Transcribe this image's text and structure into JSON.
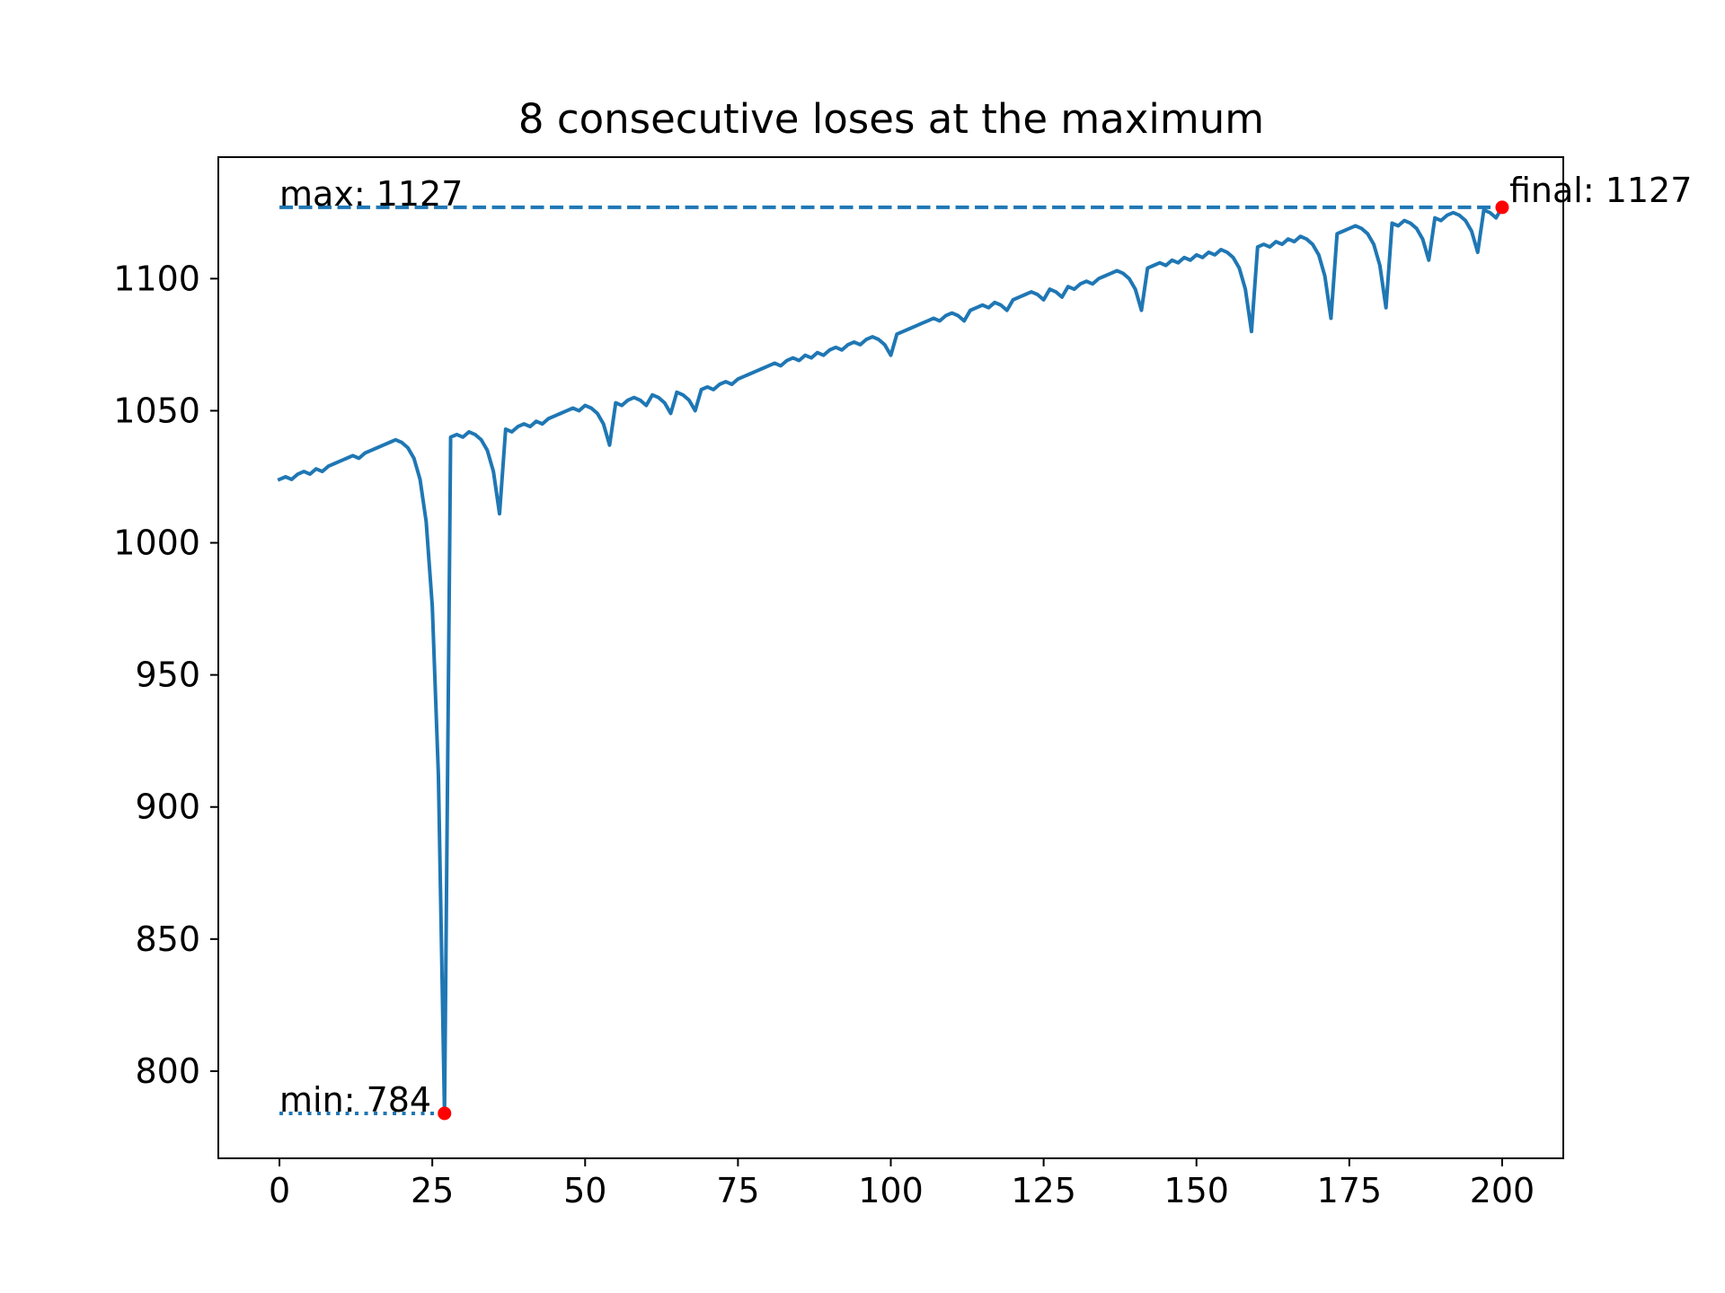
{
  "chart_data": {
    "type": "line",
    "title": "8 consecutive loses at the maximum",
    "xlabel": "",
    "ylabel": "",
    "xlim": [
      -10,
      210
    ],
    "ylim": [
      767,
      1146
    ],
    "grid": false,
    "legend": "none",
    "xticks": [
      0,
      25,
      50,
      75,
      100,
      125,
      150,
      175,
      200
    ],
    "yticks": [
      800,
      850,
      900,
      950,
      1000,
      1050,
      1100
    ],
    "series": [
      {
        "color": "#1f77b4",
        "x": [
          0,
          1,
          2,
          3,
          4,
          5,
          6,
          7,
          8,
          9,
          10,
          11,
          12,
          13,
          14,
          15,
          16,
          17,
          18,
          19,
          20,
          21,
          22,
          23,
          24,
          25,
          26,
          27,
          28,
          29,
          30,
          31,
          32,
          33,
          34,
          35,
          36,
          37,
          38,
          39,
          40,
          41,
          42,
          43,
          44,
          45,
          46,
          47,
          48,
          49,
          50,
          51,
          52,
          53,
          54,
          55,
          56,
          57,
          58,
          59,
          60,
          61,
          62,
          63,
          64,
          65,
          66,
          67,
          68,
          69,
          70,
          71,
          72,
          73,
          74,
          75,
          76,
          77,
          78,
          79,
          80,
          81,
          82,
          83,
          84,
          85,
          86,
          87,
          88,
          89,
          90,
          91,
          92,
          93,
          94,
          95,
          96,
          97,
          98,
          99,
          100,
          101,
          102,
          103,
          104,
          105,
          106,
          107,
          108,
          109,
          110,
          111,
          112,
          113,
          114,
          115,
          116,
          117,
          118,
          119,
          120,
          121,
          122,
          123,
          124,
          125,
          126,
          127,
          128,
          129,
          130,
          131,
          132,
          133,
          134,
          135,
          136,
          137,
          138,
          139,
          140,
          141,
          142,
          143,
          144,
          145,
          146,
          147,
          148,
          149,
          150,
          151,
          152,
          153,
          154,
          155,
          156,
          157,
          158,
          159,
          160,
          161,
          162,
          163,
          164,
          165,
          166,
          167,
          168,
          169,
          170,
          171,
          172,
          173,
          174,
          175,
          176,
          177,
          178,
          179,
          180,
          181,
          182,
          183,
          184,
          185,
          186,
          187,
          188,
          189,
          190,
          191,
          192,
          193,
          194,
          195,
          196,
          197,
          198,
          199,
          200
        ],
        "y": [
          1024,
          1025,
          1024,
          1026,
          1027,
          1026,
          1028,
          1027,
          1029,
          1030,
          1031,
          1032,
          1033,
          1032,
          1034,
          1035,
          1036,
          1037,
          1038,
          1039,
          1038,
          1036,
          1032,
          1024,
          1008,
          976,
          912,
          784,
          1040,
          1041,
          1040,
          1042,
          1041,
          1039,
          1035,
          1027,
          1011,
          1043,
          1042,
          1044,
          1045,
          1044,
          1046,
          1045,
          1047,
          1048,
          1049,
          1050,
          1051,
          1050,
          1052,
          1051,
          1049,
          1045,
          1037,
          1053,
          1052,
          1054,
          1055,
          1054,
          1052,
          1056,
          1055,
          1053,
          1049,
          1057,
          1056,
          1054,
          1050,
          1058,
          1059,
          1058,
          1060,
          1061,
          1060,
          1062,
          1063,
          1064,
          1065,
          1066,
          1067,
          1068,
          1067,
          1069,
          1070,
          1069,
          1071,
          1070,
          1072,
          1071,
          1073,
          1074,
          1073,
          1075,
          1076,
          1075,
          1077,
          1078,
          1077,
          1075,
          1071,
          1079,
          1080,
          1081,
          1082,
          1083,
          1084,
          1085,
          1084,
          1086,
          1087,
          1086,
          1084,
          1088,
          1089,
          1090,
          1089,
          1091,
          1090,
          1088,
          1092,
          1093,
          1094,
          1095,
          1094,
          1092,
          1096,
          1095,
          1093,
          1097,
          1096,
          1098,
          1099,
          1098,
          1100,
          1101,
          1102,
          1103,
          1102,
          1100,
          1096,
          1088,
          1104,
          1105,
          1106,
          1105,
          1107,
          1106,
          1108,
          1107,
          1109,
          1108,
          1110,
          1109,
          1111,
          1110,
          1108,
          1104,
          1096,
          1080,
          1112,
          1113,
          1112,
          1114,
          1113,
          1115,
          1114,
          1116,
          1115,
          1113,
          1109,
          1101,
          1085,
          1117,
          1118,
          1119,
          1120,
          1119,
          1117,
          1113,
          1105,
          1089,
          1121,
          1120,
          1122,
          1121,
          1119,
          1115,
          1107,
          1123,
          1122,
          1124,
          1125,
          1124,
          1122,
          1118,
          1110,
          1126,
          1125,
          1123,
          1127
        ]
      }
    ],
    "annotations": [
      {
        "text": "max: 1127",
        "x": 0,
        "y": 1127,
        "line_x": [
          0,
          200
        ],
        "line_y": [
          1127,
          1127
        ],
        "line_style": "dashed"
      },
      {
        "text": "min: 784",
        "x": 0,
        "y": 784,
        "line_x": [
          0,
          27
        ],
        "line_y": [
          784,
          784
        ],
        "line_style": "dotted"
      },
      {
        "text": "final: 1127",
        "x": 200,
        "y": 1127
      }
    ],
    "points": [
      {
        "x": 27,
        "y": 784,
        "color": "#ff0000"
      },
      {
        "x": 200,
        "y": 1127,
        "color": "#ff0000"
      }
    ]
  }
}
